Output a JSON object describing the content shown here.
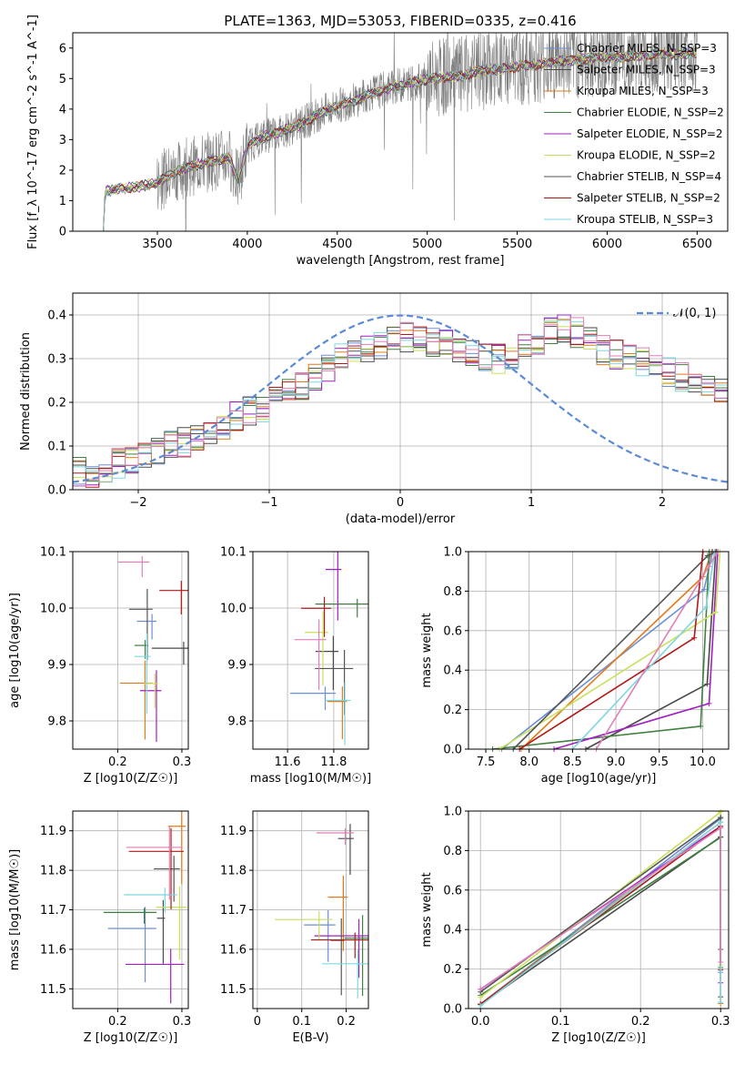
{
  "figure_title": "PLATE=1363, MJD=53053, FIBERID=0335, z=0.416",
  "colors": {
    "Chabrier MILES": "#6a8fd6",
    "Salpeter MILES": "#4a4a4a",
    "Kroupa MILES": "#e07b1a",
    "Chabrier ELODIE": "#3f7f3f",
    "Salpeter ELODIE": "#a020c0",
    "Kroupa ELODIE": "#c8e05a",
    "Chabrier STELIB": "#555555",
    "Salpeter STELIB": "#b01818",
    "Kroupa STELIB": "#7fd7e0",
    "extra pink": "#e07fb8",
    "data": "#808080",
    "gaussian": "#5b8bd6"
  },
  "chart_data": [
    {
      "id": "spectrum",
      "type": "line",
      "title": "PLATE=1363, MJD=53053, FIBERID=0335, z=0.416",
      "xlabel": "wavelength [Angstrom, rest frame]",
      "ylabel": "Flux [f_λ 10^-17 erg cm^-2 s^-1 A^-1]",
      "xlim": [
        3030,
        6670
      ],
      "ylim": [
        0,
        6.5
      ],
      "xticks": [
        3500,
        4000,
        4500,
        5000,
        5500,
        6000,
        6500
      ],
      "yticks": [
        0,
        1,
        2,
        3,
        4,
        5,
        6
      ],
      "grid": false,
      "legend_position": "right",
      "legend": [
        {
          "name": "Chabrier MILES, N_SSP=3",
          "color": "#6a8fd6"
        },
        {
          "name": "Salpeter MILES, N_SSP=3",
          "color": "#4a4a4a"
        },
        {
          "name": "Kroupa MILES, N_SSP=3",
          "color": "#e07b1a"
        },
        {
          "name": "Chabrier ELODIE, N_SSP=2",
          "color": "#3f7f3f"
        },
        {
          "name": "Salpeter ELODIE, N_SSP=2",
          "color": "#a020c0"
        },
        {
          "name": "Kroupa ELODIE, N_SSP=2",
          "color": "#c8e05a"
        },
        {
          "name": "Chabrier STELIB, N_SSP=4",
          "color": "#555555"
        },
        {
          "name": "Salpeter STELIB, N_SSP=2",
          "color": "#b01818"
        },
        {
          "name": "Kroupa STELIB, N_SSP=3",
          "color": "#7fd7e0"
        }
      ],
      "continuum_points": [
        [
          3200,
          0.0
        ],
        [
          3210,
          1.3
        ],
        [
          3300,
          1.4
        ],
        [
          3400,
          1.45
        ],
        [
          3500,
          1.6
        ],
        [
          3600,
          1.95
        ],
        [
          3700,
          2.15
        ],
        [
          3800,
          2.3
        ],
        [
          3900,
          2.4
        ],
        [
          3950,
          1.6
        ],
        [
          4000,
          2.8
        ],
        [
          4100,
          3.1
        ],
        [
          4200,
          3.3
        ],
        [
          4300,
          3.5
        ],
        [
          4400,
          3.85
        ],
        [
          4500,
          4.1
        ],
        [
          4600,
          4.3
        ],
        [
          4700,
          4.55
        ],
        [
          4800,
          4.7
        ],
        [
          4900,
          4.85
        ],
        [
          5000,
          4.95
        ],
        [
          5100,
          5.05
        ],
        [
          5200,
          5.1
        ],
        [
          5300,
          5.25
        ],
        [
          5400,
          5.3
        ],
        [
          5500,
          5.4
        ],
        [
          5600,
          5.45
        ],
        [
          5700,
          5.55
        ],
        [
          5800,
          5.6
        ],
        [
          5900,
          5.65
        ],
        [
          6000,
          5.7
        ],
        [
          6100,
          5.7
        ],
        [
          6200,
          5.75
        ],
        [
          6300,
          5.8
        ],
        [
          6400,
          5.8
        ],
        [
          6500,
          5.85
        ]
      ]
    },
    {
      "id": "residuals",
      "type": "line",
      "xlabel": "(data-model)/error",
      "ylabel": "Normed distribution",
      "xlim": [
        -2.5,
        2.5
      ],
      "ylim": [
        0,
        0.45
      ],
      "xticks": [
        -2,
        -1,
        0,
        1,
        2
      ],
      "yticks": [
        0.0,
        0.1,
        0.2,
        0.3,
        0.4
      ],
      "grid": true,
      "legend_position": "top-right",
      "legend": [
        {
          "name": "𝒩(0, 1)",
          "color": "#5b8bd6",
          "style": "dashed"
        }
      ],
      "bin_width": 0.1,
      "series": [
        {
          "color": "#6a8fd6",
          "values": [
            0.04,
            0.04,
            0.05,
            0.06,
            0.07,
            0.08,
            0.09,
            0.1,
            0.11,
            0.12,
            0.13,
            0.15,
            0.17,
            0.18,
            0.19,
            0.2,
            0.22,
            0.24,
            0.26,
            0.28,
            0.3,
            0.31,
            0.32,
            0.33,
            0.34,
            0.35,
            0.35,
            0.34,
            0.33,
            0.32,
            0.31,
            0.3,
            0.3,
            0.31,
            0.32,
            0.34,
            0.36,
            0.37,
            0.36,
            0.34,
            0.32,
            0.31,
            0.3,
            0.29,
            0.28,
            0.27,
            0.26,
            0.25,
            0.24,
            0.23
          ]
        }
      ],
      "gaussian": {
        "mean": 0,
        "sigma": 1
      }
    },
    {
      "id": "age_vs_Z",
      "type": "scatter",
      "xlabel": "Z [log10(Z/Z☉)]",
      "ylabel": "age [log10(age/yr)]",
      "xlim": [
        0.13,
        0.31
      ],
      "ylim": [
        9.75,
        10.1
      ],
      "xticks": [
        0.2,
        0.3
      ],
      "yticks": [
        9.8,
        9.9,
        10.0,
        10.1
      ],
      "grid": true
    },
    {
      "id": "age_vs_mass",
      "type": "scatter",
      "xlabel": "mass [log10(M/M☉)]",
      "ylabel": "",
      "xlim": [
        11.45,
        11.95
      ],
      "ylim": [
        9.75,
        10.1
      ],
      "xticks": [
        11.6,
        11.8
      ],
      "yticks": [
        9.8,
        9.9,
        10.0,
        10.1
      ],
      "grid": true
    },
    {
      "id": "massweight_vs_age",
      "type": "line",
      "xlabel": "age [log10(age/yr)]",
      "ylabel": "mass weight",
      "xlim": [
        7.3,
        10.3
      ],
      "ylim": [
        0,
        1
      ],
      "xticks": [
        7.5,
        8.0,
        8.5,
        9.0,
        9.5,
        10.0
      ],
      "yticks": [
        0.0,
        0.2,
        0.4,
        0.6,
        0.8,
        1.0
      ],
      "grid": true
    },
    {
      "id": "mass_vs_Z",
      "type": "scatter",
      "xlabel": "Z [log10(Z/Z☉)]",
      "ylabel": "mass [log10(M/M☉)]",
      "xlim": [
        0.13,
        0.31
      ],
      "ylim": [
        11.45,
        11.95
      ],
      "xticks": [
        0.2,
        0.3
      ],
      "yticks": [
        11.5,
        11.6,
        11.7,
        11.8,
        11.9
      ],
      "grid": true
    },
    {
      "id": "mass_vs_ebv",
      "type": "scatter",
      "xlabel": "E(B-V)",
      "ylabel": "",
      "xlim": [
        -0.01,
        0.25
      ],
      "ylim": [
        11.45,
        11.95
      ],
      "xticks": [
        0.0,
        0.1,
        0.2
      ],
      "yticks": [
        11.5,
        11.6,
        11.7,
        11.8,
        11.9
      ],
      "grid": true
    },
    {
      "id": "massweight_vs_Z",
      "type": "line",
      "xlabel": "Z [log10(Z/Z☉)]",
      "ylabel": "mass weight",
      "xlim": [
        -0.015,
        0.31
      ],
      "ylim": [
        0,
        1
      ],
      "xticks": [
        0.0,
        0.1,
        0.2,
        0.3
      ],
      "yticks": [
        0.0,
        0.2,
        0.4,
        0.6,
        0.8,
        1.0
      ],
      "grid": true
    }
  ]
}
